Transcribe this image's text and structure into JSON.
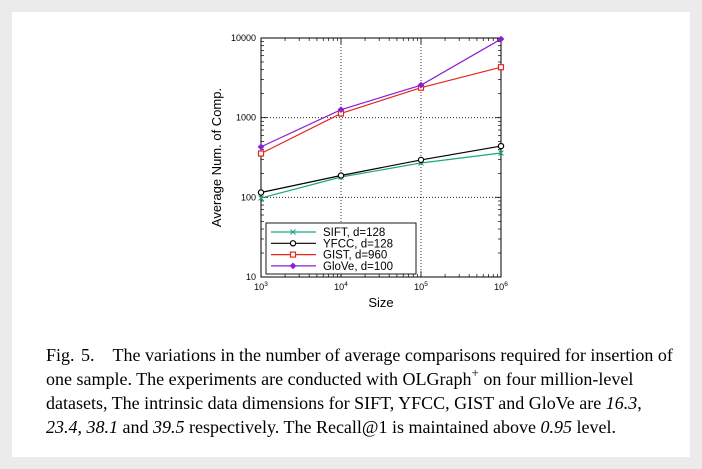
{
  "chart_data": {
    "type": "line",
    "x_scale": "log",
    "y_scale": "log",
    "x": [
      1000,
      10000,
      100000,
      1000000
    ],
    "xticks": [
      "10^3",
      "10^4",
      "10^5",
      "10^6"
    ],
    "yticks": [
      "10",
      "100",
      "1000",
      "10000"
    ],
    "xlim": [
      1000,
      1000000
    ],
    "ylim": [
      10,
      10000
    ],
    "xlabel": "Size",
    "ylabel": "Average Num. of Comp.",
    "grid": true,
    "legend_position": "bottom-left",
    "series": [
      {
        "name": "SIFT, d=128",
        "values": [
          98,
          180,
          270,
          360
        ],
        "color": "#1aa683",
        "marker": "x"
      },
      {
        "name": "YFCC, d=128",
        "values": [
          115,
          188,
          295,
          440
        ],
        "color": "#000000",
        "marker": "circle"
      },
      {
        "name": "GIST, d=960",
        "values": [
          355,
          1130,
          2380,
          4300
        ],
        "color": "#e8241f",
        "marker": "square"
      },
      {
        "name": "GloVe, d=100",
        "values": [
          430,
          1260,
          2560,
          9700
        ],
        "color": "#8a1fd6",
        "marker": "diamond"
      }
    ]
  },
  "caption": {
    "label": "Fig. 5.",
    "text_1": "The variations in the number of average comparisons required for insertion of one sample. The experiments are conducted with OLGraph",
    "sup": "+",
    "text_2": " on four million-level datasets, The intrinsic data dimensions for SIFT, YFCC, GIST and GloVe are ",
    "dim_1": "16.3",
    "sep_1": ", ",
    "dim_2": "23.4",
    "sep_2": ", ",
    "dim_3": "38.1",
    "sep_3": " and ",
    "dim_4": "39.5",
    "text_3": " respectively. The Recall@1 is maintained above ",
    "level": "0.95",
    "text_4": " level."
  }
}
